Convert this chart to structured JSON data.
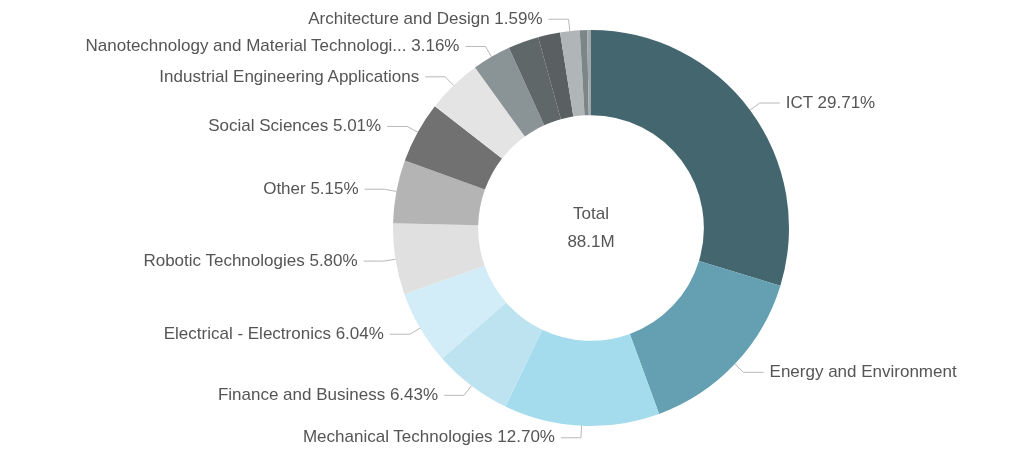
{
  "chart_data": {
    "type": "donut",
    "categories": [
      "ICT",
      "Energy and Environment",
      "Mechanical Technologies",
      "Finance and Business",
      "Electrical - Electronics",
      "Robotic Technologies",
      "Other",
      "Social Sciences",
      "Industrial Engineering Applications",
      "Nanotechnology and Material Technologi...",
      null,
      null,
      "Architecture and Design",
      null,
      null
    ],
    "values": [
      29.71,
      14.7,
      12.7,
      6.43,
      6.04,
      5.8,
      5.15,
      5.01,
      4.5,
      3.16,
      2.5,
      1.8,
      1.59,
      0.6,
      0.31
    ],
    "value_labels": [
      "29.71%",
      null,
      "12.70%",
      "6.43%",
      "6.04%",
      "5.80%",
      "5.15%",
      "5.01%",
      null,
      "3.16%",
      null,
      null,
      "1.59%",
      null,
      null
    ],
    "colors": [
      "#44666f",
      "#64a0b2",
      "#a4dced",
      "#bde3f0",
      "#d2edf7",
      "#e0e0e0",
      "#b4b4b4",
      "#717171",
      "#e4e4e4",
      "#8a9396",
      "#5f6769",
      "#5a6062",
      "#b0b5b8",
      "#7c8588",
      "#a0a8ab"
    ],
    "annotations": [
      "Total",
      "88.1M"
    ],
    "legend": false
  }
}
